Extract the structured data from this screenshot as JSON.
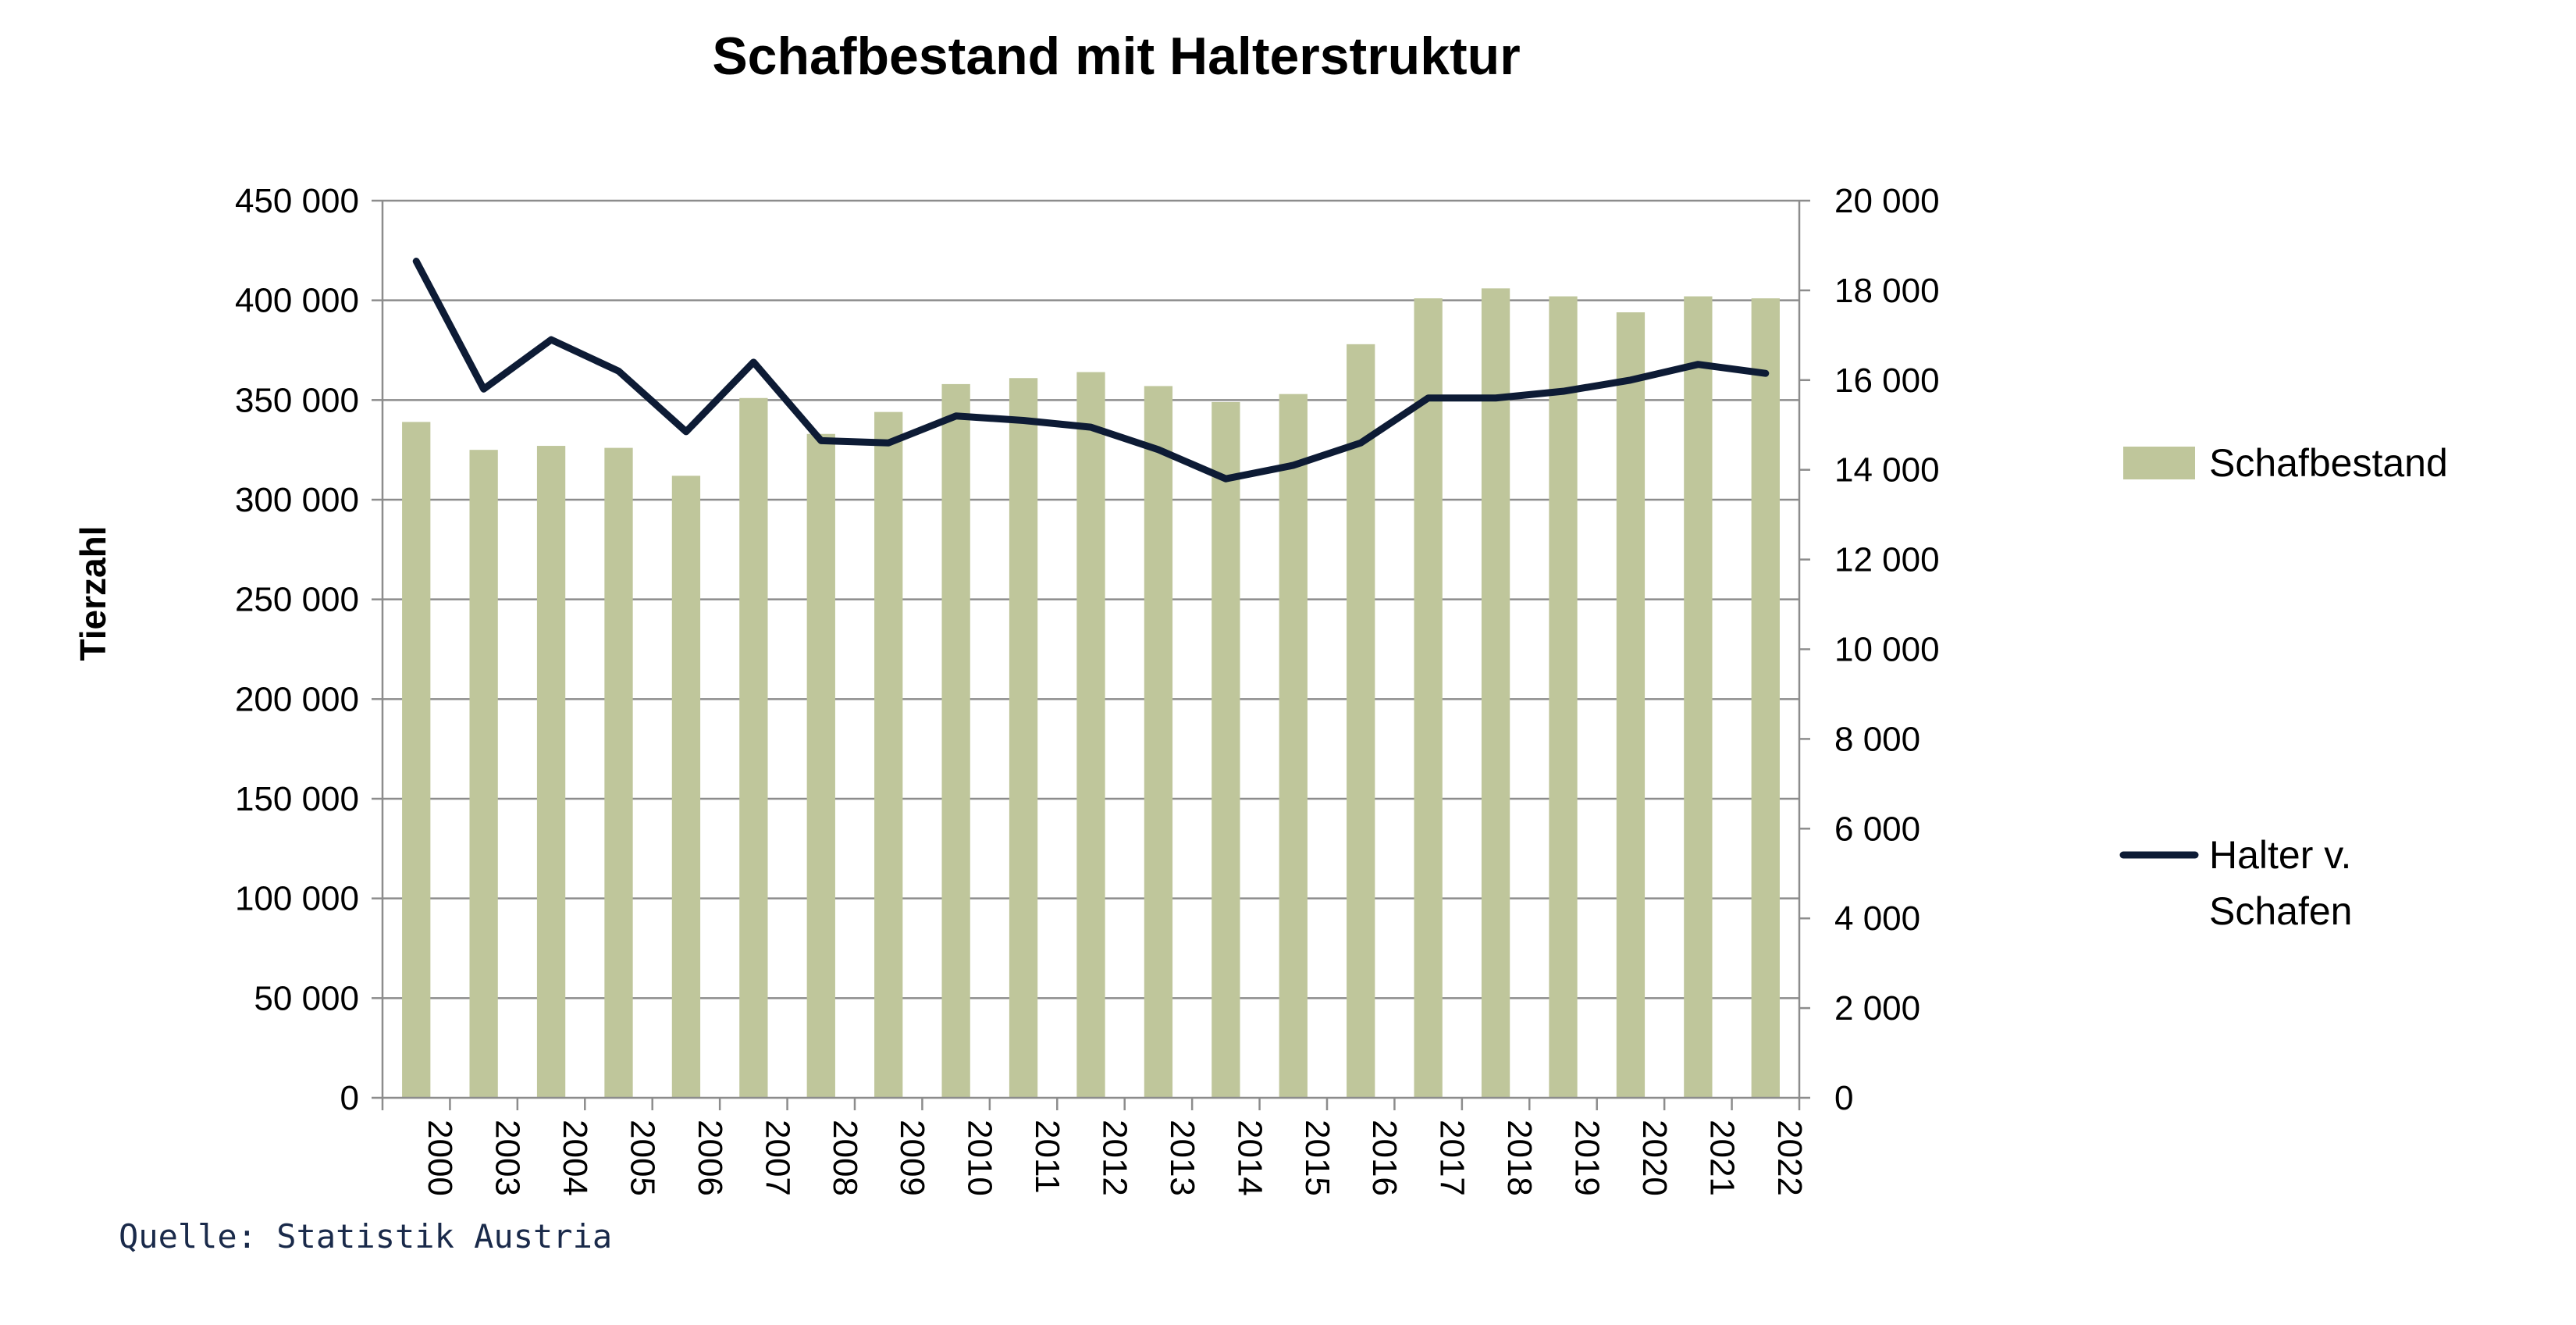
{
  "chart_data": {
    "type": "bar",
    "title": "Schafbestand mit Halterstruktur",
    "ylabel": "Tierzahl",
    "source": "Quelle: Statistik Austria",
    "categories": [
      "2000",
      "2003",
      "2004",
      "2005",
      "2006",
      "2007",
      "2008",
      "2009",
      "2010",
      "2011",
      "2012",
      "2013",
      "2014",
      "2015",
      "2016",
      "2017",
      "2018",
      "2019",
      "2020",
      "2021",
      "2022"
    ],
    "y_left": {
      "ylim": [
        0,
        450000
      ],
      "ticks": [
        0,
        50000,
        100000,
        150000,
        200000,
        250000,
        300000,
        350000,
        400000,
        450000
      ],
      "tick_labels": [
        "0",
        "50 000",
        "100 000",
        "150 000",
        "200 000",
        "250 000",
        "300 000",
        "350 000",
        "400 000",
        "450 000"
      ]
    },
    "y_right": {
      "ylim": [
        0,
        20000
      ],
      "ticks": [
        0,
        2000,
        4000,
        6000,
        8000,
        10000,
        12000,
        14000,
        16000,
        18000,
        20000
      ],
      "tick_labels": [
        "0",
        "2 000",
        "4 000",
        "6 000",
        "8 000",
        "10 000",
        "12 000",
        "14 000",
        "16 000",
        "18 000",
        "20 000"
      ]
    },
    "series": [
      {
        "name": "Schafbestand",
        "type": "bar",
        "axis": "left",
        "color": "#bfc69b",
        "values": [
          339000,
          325000,
          327000,
          326000,
          312000,
          351000,
          333000,
          344000,
          358000,
          361000,
          364000,
          357000,
          349000,
          353000,
          378000,
          401000,
          406000,
          402000,
          394000,
          402000,
          401000
        ]
      },
      {
        "name": "Halter v. Schafen",
        "legend_lines": [
          "Halter v.",
          "Schafen"
        ],
        "type": "line",
        "axis": "right",
        "color": "#0d1b35",
        "values": [
          18650,
          15800,
          16900,
          16200,
          14850,
          16400,
          14650,
          14600,
          15200,
          15100,
          14950,
          14450,
          13800,
          14100,
          14600,
          15600,
          15600,
          15750,
          16000,
          16350,
          16150
        ]
      }
    ],
    "grid": true,
    "legend_position": "right"
  }
}
